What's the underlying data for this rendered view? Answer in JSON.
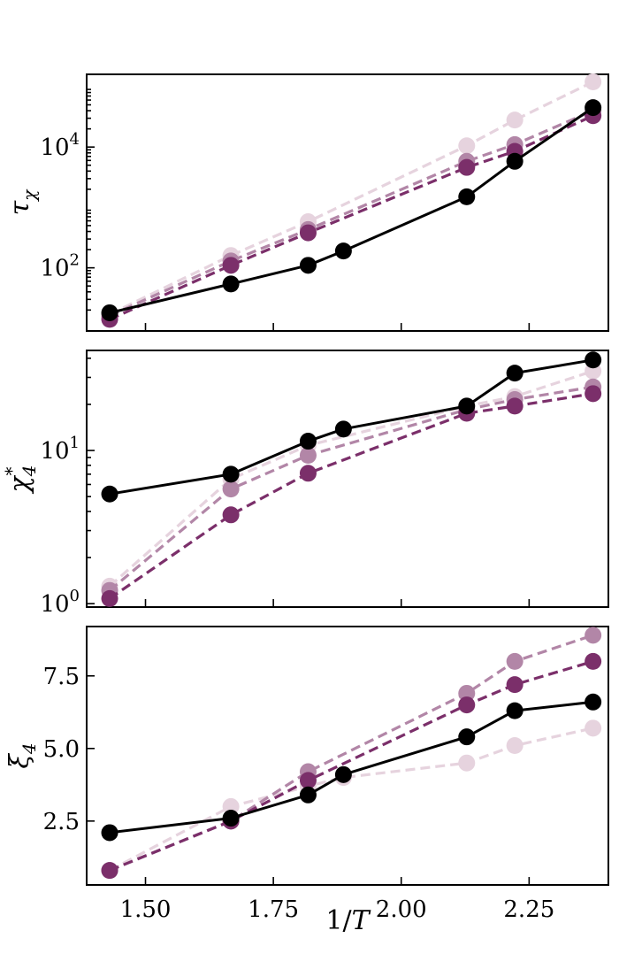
{
  "chart_data": [
    {
      "type": "line",
      "panel": "top",
      "yscale": "log",
      "ylabel": "τχ",
      "ylim": [
        9,
        160000
      ],
      "yticks": [
        {
          "value": 100,
          "base": "10",
          "exp": "2"
        },
        {
          "value": 10000,
          "base": "10",
          "exp": "4"
        }
      ],
      "xlim": [
        1.385,
        2.405
      ],
      "series": [
        {
          "name": "series-lightest",
          "color": "#e6d3de",
          "dashed": true,
          "x": [
            1.43,
            1.667,
            1.818,
            2.128,
            2.222,
            2.375
          ],
          "y": [
            17,
            160,
            580,
            10500,
            28000,
            120000
          ]
        },
        {
          "name": "series-light",
          "color": "#b286a7",
          "dashed": true,
          "x": [
            1.43,
            1.667,
            1.818,
            2.128,
            2.222,
            2.375
          ],
          "y": [
            16,
            130,
            430,
            5800,
            11000,
            40000
          ]
        },
        {
          "name": "series-dark",
          "color": "#7b2f6a",
          "dashed": true,
          "x": [
            1.43,
            1.667,
            1.818,
            2.128,
            2.222,
            2.375
          ],
          "y": [
            14,
            110,
            380,
            4600,
            8500,
            33000
          ]
        },
        {
          "name": "series-black",
          "color": "#000000",
          "dashed": false,
          "x": [
            1.43,
            1.667,
            1.818,
            1.887,
            2.128,
            2.222,
            2.375
          ],
          "y": [
            18,
            54,
            110,
            190,
            1500,
            5800,
            45000
          ]
        }
      ]
    },
    {
      "type": "line",
      "panel": "middle",
      "yscale": "log",
      "ylabel": "χ*4",
      "ylim": [
        0.95,
        45
      ],
      "yticks": [
        {
          "value": 1,
          "base": "10",
          "exp": "0"
        },
        {
          "value": 10,
          "base": "10",
          "exp": "1"
        }
      ],
      "xlim": [
        1.385,
        2.405
      ],
      "series": [
        {
          "name": "series-lightest",
          "color": "#e6d3de",
          "dashed": true,
          "x": [
            1.43,
            1.667,
            1.818,
            2.128,
            2.222,
            2.375
          ],
          "y": [
            1.3,
            6.5,
            10.8,
            19.5,
            22.5,
            33
          ]
        },
        {
          "name": "series-light",
          "color": "#b286a7",
          "dashed": true,
          "x": [
            1.43,
            1.667,
            1.818,
            2.128,
            2.222,
            2.375
          ],
          "y": [
            1.22,
            5.6,
            9.3,
            18.5,
            21.5,
            26
          ]
        },
        {
          "name": "series-dark",
          "color": "#7b2f6a",
          "dashed": true,
          "x": [
            1.43,
            1.667,
            1.818,
            2.128,
            2.222,
            2.375
          ],
          "y": [
            1.08,
            3.8,
            7.1,
            17.5,
            19.5,
            23.5
          ]
        },
        {
          "name": "series-black",
          "color": "#000000",
          "dashed": false,
          "x": [
            1.43,
            1.667,
            1.818,
            1.887,
            2.128,
            2.222,
            2.375
          ],
          "y": [
            5.2,
            7.0,
            11.5,
            13.8,
            19.5,
            32,
            39
          ]
        }
      ]
    },
    {
      "type": "line",
      "panel": "bottom",
      "yscale": "linear",
      "ylabel": "ξ4",
      "xlabel": "1/T",
      "ylim": [
        0.3,
        9.2
      ],
      "yticks": [
        {
          "value": 2.5,
          "label": "2.5"
        },
        {
          "value": 5.0,
          "label": "5.0"
        },
        {
          "value": 7.5,
          "label": "7.5"
        }
      ],
      "xlim": [
        1.385,
        2.405
      ],
      "xticks": [
        {
          "value": 1.5,
          "label": "1.50"
        },
        {
          "value": 1.75,
          "label": "1.75"
        },
        {
          "value": 2.0,
          "label": "2.00"
        },
        {
          "value": 2.25,
          "label": "2.25"
        }
      ],
      "series": [
        {
          "name": "series-lightest",
          "color": "#e6d3de",
          "dashed": true,
          "x": [
            1.43,
            1.667,
            1.818,
            1.887,
            2.128,
            2.222,
            2.375
          ],
          "y": [
            0.8,
            3.0,
            3.7,
            4.0,
            4.5,
            5.1,
            5.7
          ]
        },
        {
          "name": "series-light",
          "color": "#b286a7",
          "dashed": true,
          "x": [
            1.43,
            1.667,
            1.818,
            2.128,
            2.222,
            2.375
          ],
          "y": [
            0.8,
            2.5,
            4.2,
            6.9,
            8.0,
            8.9
          ]
        },
        {
          "name": "series-dark",
          "color": "#7b2f6a",
          "dashed": true,
          "x": [
            1.43,
            1.667,
            1.818,
            2.128,
            2.222,
            2.375
          ],
          "y": [
            0.8,
            2.5,
            3.9,
            6.5,
            7.2,
            8.0
          ]
        },
        {
          "name": "series-black",
          "color": "#000000",
          "dashed": false,
          "x": [
            1.43,
            1.667,
            1.818,
            1.887,
            2.128,
            2.222,
            2.375
          ],
          "y": [
            2.1,
            2.6,
            3.4,
            4.1,
            5.4,
            6.3,
            6.6
          ]
        }
      ]
    }
  ]
}
